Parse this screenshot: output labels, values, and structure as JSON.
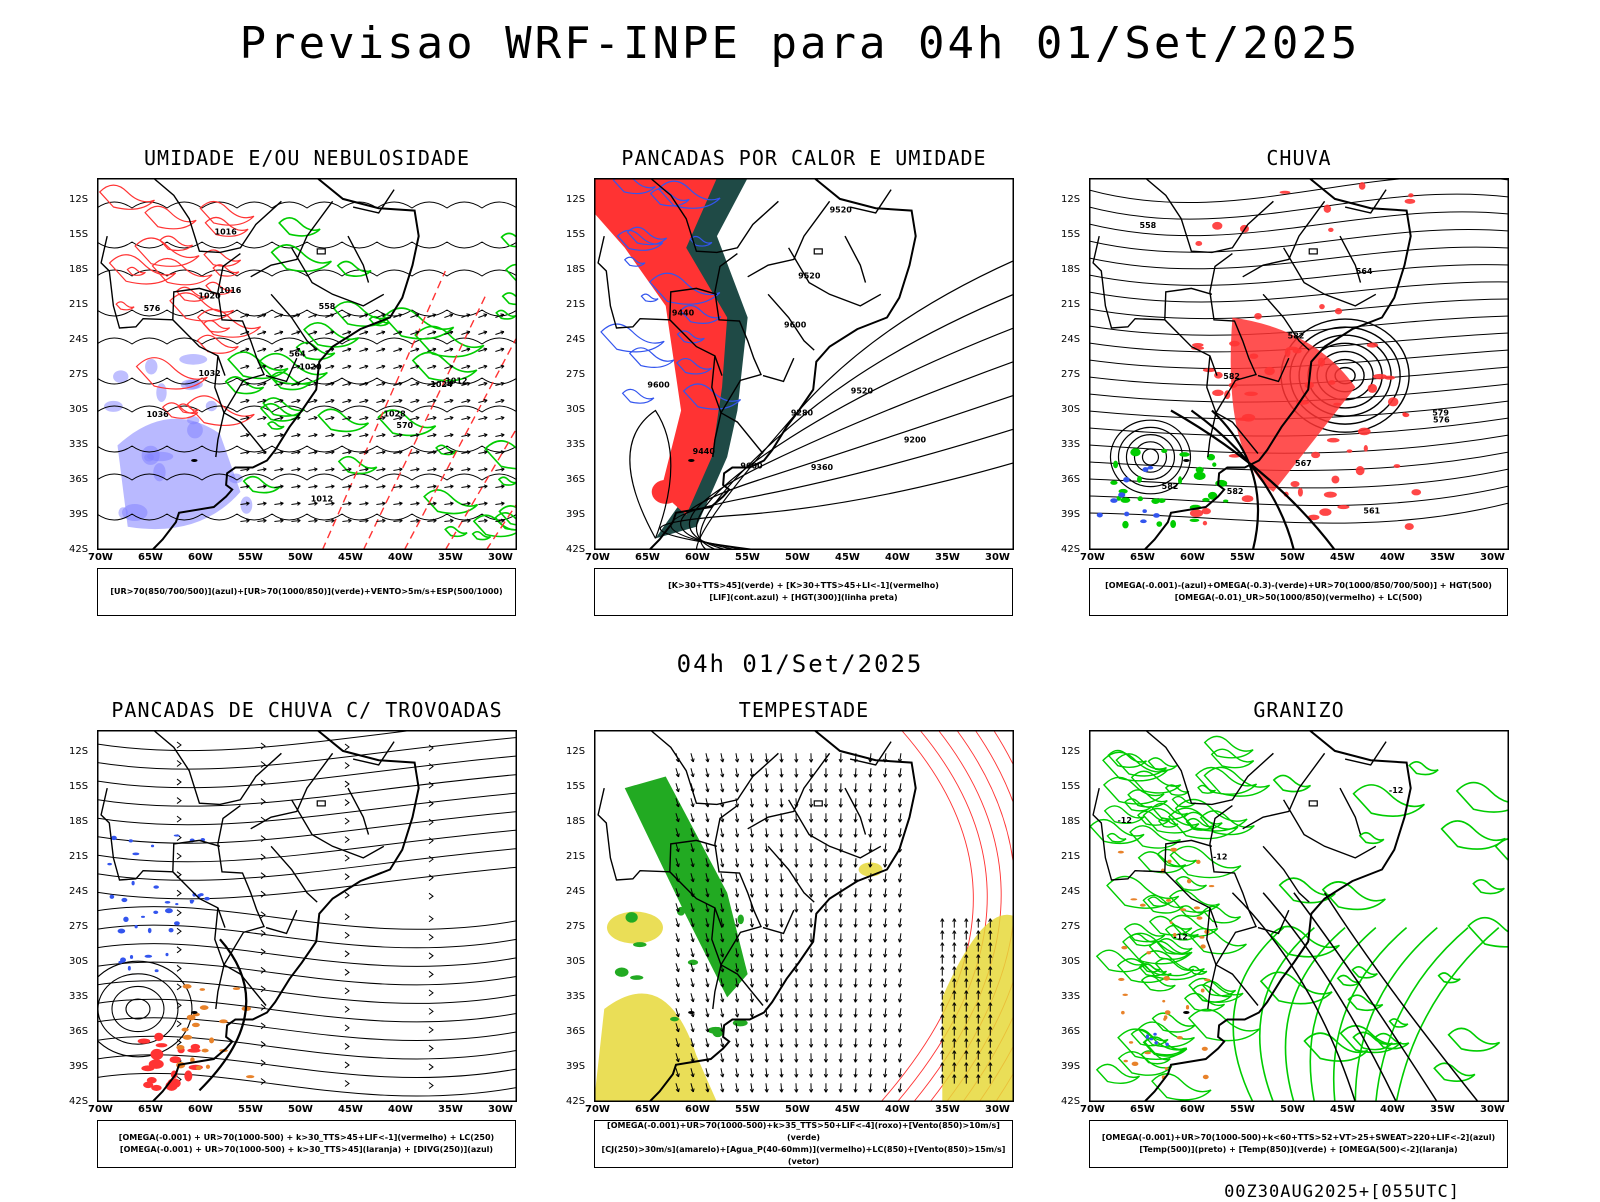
{
  "header": {
    "title": "Previsao WRF-INPE  para 04h 01/Set/2025"
  },
  "middle": {
    "title": "04h 01/Set/2025"
  },
  "footer": {
    "run": "00Z30AUG2025+[055UTC]"
  },
  "axes": {
    "lat_labels": [
      "12S",
      "15S",
      "18S",
      "21S",
      "24S",
      "27S",
      "30S",
      "33S",
      "36S",
      "39S",
      "42S"
    ],
    "lon_labels": [
      "70W",
      "65W",
      "60W",
      "55W",
      "50W",
      "45W",
      "40W",
      "35W",
      "30W"
    ]
  },
  "colors": {
    "humidity_blue": "#8080ff",
    "moist_green": "#00cc00",
    "alert_red": "#ff3333",
    "dark_teal": "#1f4a46",
    "storm_yellow": "#e6d83a",
    "orange": "#e8822a"
  },
  "panels": [
    {
      "title": "UMIDADE E/OU NEBULOSIDADE",
      "legend": [
        "[UR>70(850/700/500)](azul)+[UR>70(1000/850)](verde)+VENTO>5m/s+ESP(500/1000)"
      ],
      "labels": [
        "1012",
        "1020",
        "1016",
        "1024",
        "1028",
        "1032",
        "1036",
        "1012",
        "1016",
        "1020",
        "576",
        "570",
        "564",
        "558"
      ]
    },
    {
      "title": "PANCADAS POR CALOR E UMIDADE",
      "legend": [
        "[K>30+TTS>45](verde) + [K>30+TTS>45+LI<-1](vermelho)",
        "[LIF](cont.azul) + [HGT(300)](linha preta)"
      ],
      "labels": [
        "9600",
        "9600",
        "9600",
        "9520",
        "9520",
        "9520",
        "9440",
        "9440",
        "9360",
        "9280",
        "9200"
      ]
    },
    {
      "title": "CHUVA",
      "legend": [
        "[OMEGA(-0.001)-(azul)+OMEGA(-0.3)-(verde)+UR>70(1000/850/700/500)] + HGT(500)",
        "[OMEGA(-0.01)_UR>50(1000/850)(vermelho) + LC(500)"
      ],
      "labels": [
        "582",
        "582",
        "582",
        "582",
        "576",
        "567",
        "579",
        "564",
        "561",
        "558"
      ]
    },
    {
      "title": "PANCADAS DE CHUVA C/ TROVOADAS",
      "legend": [
        "[OMEGA(-0.001) + UR>70(1000-500) + k>30_TTS>45+LIF<-1](vermelho) + LC(250)",
        "[OMEGA(-0.001) + UR>70(1000-500) + k>30_TTS>45](laranja) + [DIVG(250)](azul)"
      ],
      "labels": []
    },
    {
      "title": "TEMPESTADE",
      "legend": [
        "[OMEGA(-0.001)+UR>70(1000-500)+k>35_TTS>50+LIF<-4](roxo)+[Vento(850)>10m/s](verde)",
        "[CJ(250)>30m/s](amarelo)+[Agua_P(40-60mm)](vermelho)+LC(850)+[Vento(850)>15m/s](vetor)"
      ],
      "labels": []
    },
    {
      "title": "GRANIZO",
      "legend": [
        "[OMEGA(-0.001)+UR>70(1000-500)+k<60+TTS>52+VT>25+SWEAT>220+LIF<-2](azul)",
        "[Temp(500)](preto) + [Temp(850)](verde) + [OMEGA(500)<-2](laranja)"
      ],
      "labels": [
        "-12",
        "-12",
        "-12",
        "-12"
      ]
    }
  ]
}
